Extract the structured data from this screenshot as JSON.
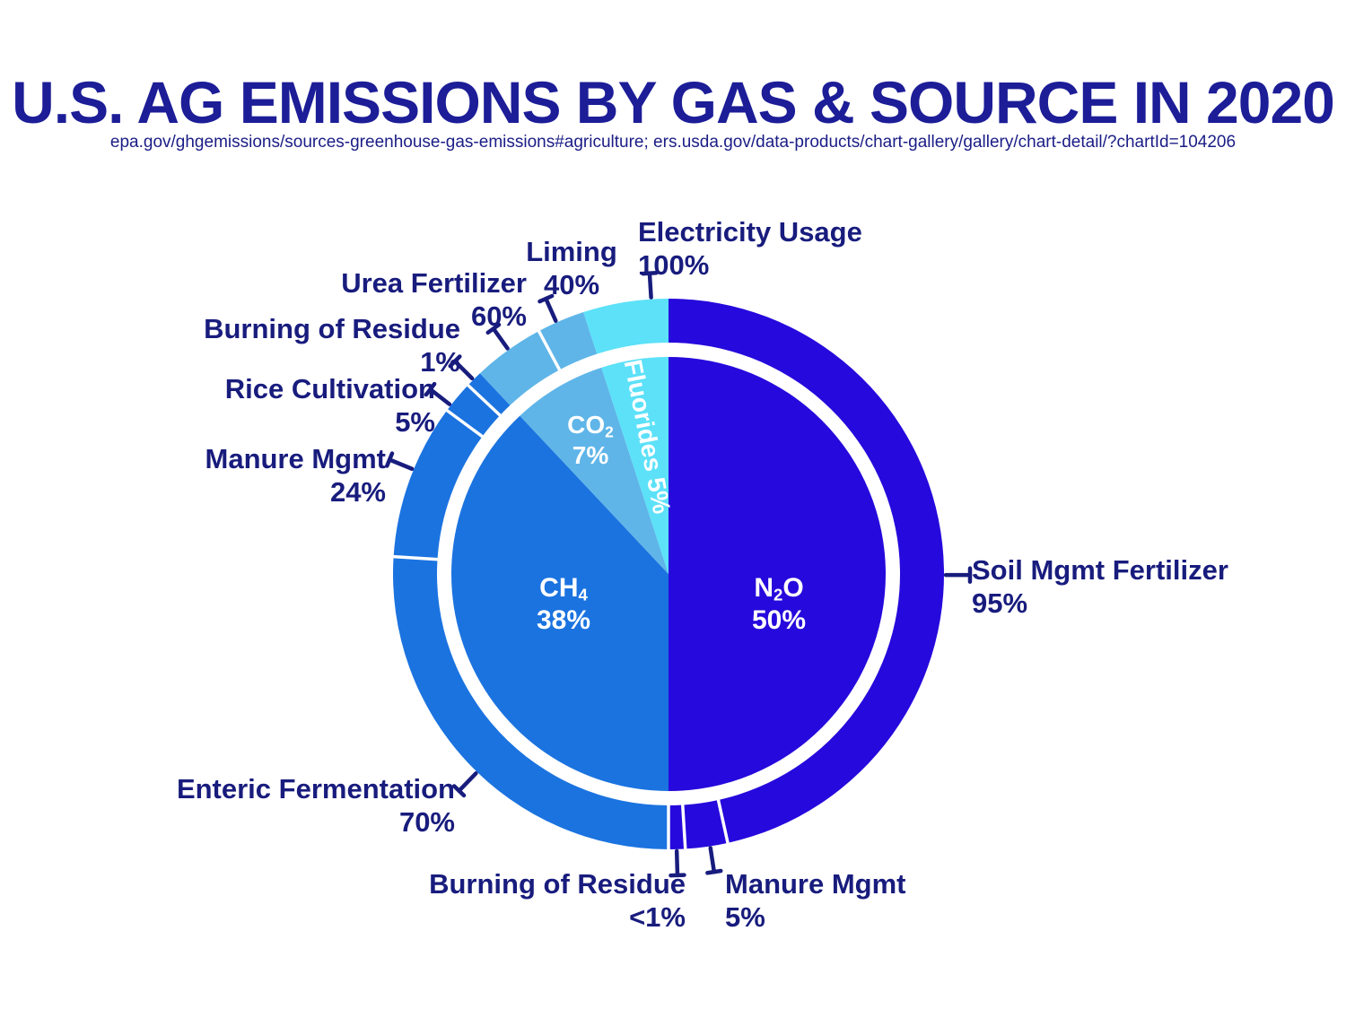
{
  "header": {
    "title": "U.S. AG EMISSIONS BY GAS & SOURCE IN 2020",
    "subtitle": "epa.gov/ghgemissions/sources-greenhouse-gas-emissions#agriculture; ers.usda.gov/data-products/chart-gallery/gallery/chart-detail/?chartId=104206"
  },
  "colors": {
    "background": "#ffffff",
    "navy_text": "#181c7d",
    "title_navy": "#1c1d97",
    "n2o_blue": "#2609dc",
    "ch4_blue": "#1b73e0",
    "co2_blue": "#5fb5e8",
    "fluorides_cyan": "#5ce1f8",
    "inner_label_white": "#ffffff"
  },
  "chart_data": {
    "type": "pie",
    "subtype": "two-level-donut",
    "title": "U.S. AG EMISSIONS BY GAS & SOURCE IN 2020",
    "units": "%",
    "legend_position": "none",
    "gases": [
      {
        "name": "N2O",
        "formula": {
          "pre": "N",
          "sub": "2",
          "post": "O"
        },
        "pct": 50,
        "pct_label": "50%",
        "color": "#2609dc",
        "sources": [
          {
            "label": "Soil Mgmt Fertilizer",
            "pct_of_gas": 95,
            "pct_label": "95%"
          },
          {
            "label": "Manure Mgmt",
            "pct_of_gas": 5,
            "pct_label": "5%"
          },
          {
            "label": "Burning of Residue",
            "pct_of_gas": 0.9,
            "pct_label": "<1%"
          }
        ]
      },
      {
        "name": "CH4",
        "formula": {
          "pre": "CH",
          "sub": "4",
          "post": ""
        },
        "pct": 38,
        "pct_label": "38%",
        "color": "#1b73e0",
        "sources": [
          {
            "label": "Enteric Fermentation",
            "pct_of_gas": 70,
            "pct_label": "70%"
          },
          {
            "label": "Manure Mgmt",
            "pct_of_gas": 24,
            "pct_label": "24%"
          },
          {
            "label": "Rice Cultivation",
            "pct_of_gas": 5,
            "pct_label": "5%"
          },
          {
            "label": "Burning of Residue",
            "pct_of_gas": 1,
            "pct_label": "1%"
          }
        ]
      },
      {
        "name": "CO2",
        "formula": {
          "pre": "CO",
          "sub": "2",
          "post": ""
        },
        "pct": 7,
        "pct_label": "7%",
        "color": "#5fb5e8",
        "sources": [
          {
            "label": "Urea Fertilizer",
            "pct_of_gas": 60,
            "pct_label": "60%"
          },
          {
            "label": "Liming",
            "pct_of_gas": 40,
            "pct_label": "40%"
          }
        ]
      },
      {
        "name": "Fluorides",
        "inner_label": "Fluorides 5%",
        "pct": 5,
        "pct_label": "5%",
        "color": "#5ce1f8",
        "sources": [
          {
            "label": "Electricity Usage",
            "pct_of_gas": 100,
            "pct_label": "100%"
          }
        ]
      }
    ]
  }
}
